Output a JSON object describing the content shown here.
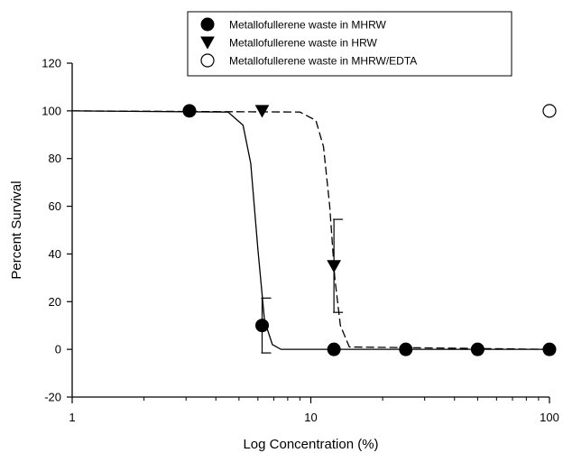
{
  "chart_data": {
    "type": "scatter",
    "xlabel": "Log Concentration (%)",
    "ylabel": "Percent Survival",
    "x_scale": "log",
    "xlim": [
      1,
      100
    ],
    "ylim": [
      -20,
      120
    ],
    "x_ticks": [
      1,
      10,
      100
    ],
    "x_tick_labels": [
      "1",
      "10",
      "100"
    ],
    "y_ticks": [
      -20,
      0,
      20,
      40,
      60,
      80,
      100,
      120
    ],
    "y_tick_labels": [
      "-20",
      "0",
      "20",
      "40",
      "60",
      "80",
      "100",
      "120"
    ],
    "grid": false,
    "legend_position": "top-center",
    "series": [
      {
        "name": "Metallofullerene waste in MHRW",
        "marker": "filled-circle",
        "color": "#000000",
        "x": [
          3.1,
          6.25,
          12.5,
          25,
          50,
          100
        ],
        "y": [
          100,
          10,
          0,
          0,
          0,
          0
        ],
        "error": [
          0,
          11.5,
          0,
          0,
          0,
          0
        ],
        "fit": {
          "x": [
            1,
            4.5,
            5.2,
            5.6,
            6.0,
            6.4,
            6.9,
            7.5,
            100
          ],
          "y": [
            100,
            99.5,
            94,
            78,
            42,
            12,
            2,
            0,
            0
          ],
          "style": "solid"
        }
      },
      {
        "name": "Metallofullerene waste in HRW",
        "marker": "filled-triangle-down",
        "color": "#000000",
        "x": [
          6.25,
          12.5
        ],
        "y": [
          100,
          35
        ],
        "error": [
          0,
          19.5
        ],
        "fit": {
          "x": [
            1,
            9.0,
            10.5,
            11.3,
            12.0,
            12.6,
            13.3,
            14.5,
            100
          ],
          "y": [
            100,
            99.5,
            96,
            85,
            60,
            30,
            10,
            1,
            0
          ],
          "style": "dashed"
        }
      },
      {
        "name": "Metallofullerene waste in MHRW/EDTA",
        "marker": "open-circle",
        "color": "#000000",
        "x": [
          100
        ],
        "y": [
          100
        ],
        "error": [
          0
        ]
      }
    ]
  }
}
